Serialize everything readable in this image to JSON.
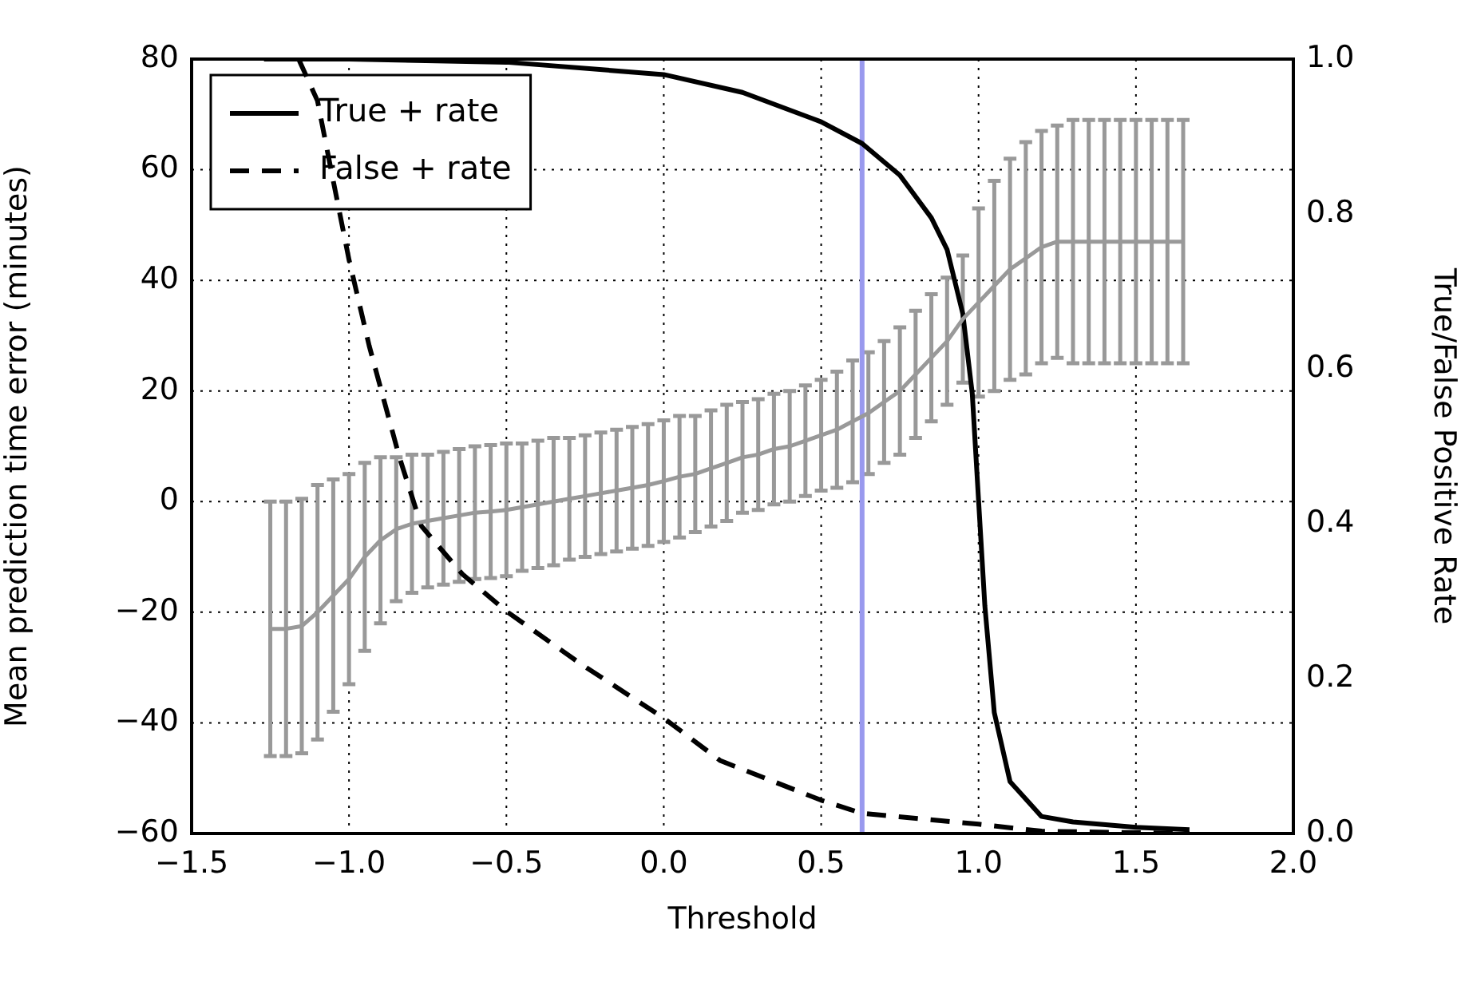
{
  "chart_data": {
    "type": "line",
    "xlabel": "Threshold",
    "ylabel": "Mean prediction time error (minutes)",
    "y2label": "True/False Positive Rate",
    "xlim": [
      -1.5,
      2.0
    ],
    "xticks": [
      {
        "value": -1.5,
        "label": "−1.5"
      },
      {
        "value": -1.0,
        "label": "−1.0"
      },
      {
        "value": -0.5,
        "label": "−0.5"
      },
      {
        "value": 0,
        "label": "0.0"
      },
      {
        "value": 0.5,
        "label": "0.5"
      },
      {
        "value": 1.0,
        "label": "1.0"
      },
      {
        "value": 1.5,
        "label": "1.5"
      },
      {
        "value": 2.0,
        "label": "2.0"
      }
    ],
    "ylim": [
      -60,
      80
    ],
    "yticks": [
      {
        "value": -60,
        "label": "−60"
      },
      {
        "value": -40,
        "label": "−40"
      },
      {
        "value": -20,
        "label": "−20"
      },
      0,
      20,
      40,
      60,
      80
    ],
    "y2lim": [
      0,
      1
    ],
    "y2ticks": [
      {
        "value": 0,
        "label": "0.0"
      },
      {
        "value": 0.2,
        "label": "0.2"
      },
      {
        "value": 0.4,
        "label": "0.4"
      },
      {
        "value": 0.6,
        "label": "0.6"
      },
      {
        "value": 0.8,
        "label": "0.8"
      },
      {
        "value": 1,
        "label": "1.0"
      }
    ],
    "grid": true,
    "legend": "top left",
    "marker": "none",
    "ref_lines": [
      {
        "axis": "x",
        "value": 0.63,
        "color": "#9999ee"
      }
    ],
    "series": [
      {
        "color": "#999999",
        "line_style": "solid",
        "x": [
          -1.25,
          -1.2,
          -1.15,
          -1.1,
          -1.05,
          -1.0,
          -0.95,
          -0.9,
          -0.85,
          -0.8,
          -0.75,
          -0.7,
          -0.65,
          -0.6,
          -0.55,
          -0.5,
          -0.45,
          -0.4,
          -0.35,
          -0.3,
          -0.25,
          -0.2,
          -0.15,
          -0.1,
          -0.05,
          0.0,
          0.05,
          0.1,
          0.15,
          0.2,
          0.25,
          0.3,
          0.35,
          0.4,
          0.45,
          0.5,
          0.55,
          0.6,
          0.65,
          0.7,
          0.75,
          0.8,
          0.85,
          0.9,
          0.95,
          1.0,
          1.05,
          1.1,
          1.15,
          1.2,
          1.25,
          1.3,
          1.35,
          1.4,
          1.45,
          1.5,
          1.55,
          1.6,
          1.65
        ],
        "values": [
          -23,
          -23,
          -22.5,
          -20,
          -17,
          -14,
          -10,
          -7,
          -5,
          -4,
          -3.5,
          -3,
          -2.5,
          -2,
          -1.8,
          -1.5,
          -1,
          -0.5,
          0,
          0.5,
          1,
          1.5,
          2,
          2.5,
          3,
          3.7,
          4.5,
          5,
          6,
          7,
          8,
          8.5,
          9.5,
          10,
          11,
          12,
          13,
          14.5,
          16,
          18,
          20,
          23,
          26,
          29,
          33,
          36,
          39,
          42,
          44,
          46,
          47,
          47,
          47,
          47,
          47,
          47,
          47,
          47,
          47
        ],
        "errors": [
          23,
          23,
          23,
          23,
          21,
          19,
          17,
          15,
          13,
          12.5,
          12,
          12,
          12,
          12,
          12,
          12,
          11.5,
          11.5,
          11.5,
          11,
          11,
          11,
          11,
          11,
          11,
          11,
          11,
          10.5,
          10.5,
          10.5,
          10,
          10,
          10,
          10,
          10,
          10,
          10.5,
          11,
          11,
          11,
          11.5,
          11.5,
          11.5,
          11.5,
          11.5,
          17,
          19,
          20,
          21,
          21,
          21,
          22,
          22,
          22,
          22,
          22,
          22,
          22,
          22
        ]
      },
      {
        "name": "True + rate",
        "color": "#000000",
        "line_style": "solid",
        "axis": "y2",
        "x": [
          -1.27,
          -1.0,
          -0.5,
          0.0,
          0.25,
          0.5,
          0.63,
          0.75,
          0.85,
          0.9,
          0.95,
          0.98,
          1.0,
          1.02,
          1.05,
          1.1,
          1.2,
          1.3,
          1.5,
          1.67
        ],
        "values": [
          1.0,
          1.0,
          0.996,
          0.98,
          0.957,
          0.919,
          0.891,
          0.85,
          0.795,
          0.754,
          0.671,
          0.568,
          0.43,
          0.294,
          0.156,
          0.067,
          0.022,
          0.015,
          0.008,
          0.005
        ]
      },
      {
        "name": "False + rate",
        "color": "#000000",
        "line_style": "dashed",
        "axis": "y2",
        "x": [
          -1.16,
          -1.1,
          -1.057,
          -1.0,
          -0.936,
          -0.84,
          -0.77,
          -0.64,
          -0.5,
          -0.26,
          0.0,
          0.18,
          0.5,
          0.63,
          1.0,
          1.2,
          1.67
        ],
        "values": [
          1.0,
          0.946,
          0.857,
          0.741,
          0.63,
          0.486,
          0.397,
          0.335,
          0.287,
          0.218,
          0.149,
          0.094,
          0.043,
          0.026,
          0.012,
          0.003,
          0.0
        ]
      }
    ]
  }
}
